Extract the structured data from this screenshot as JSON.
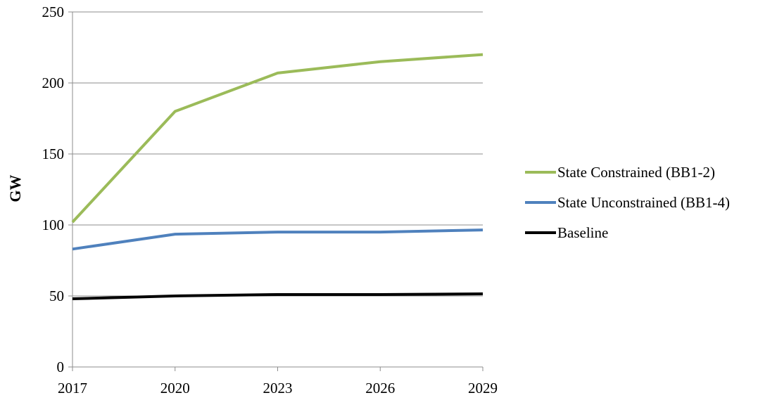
{
  "chart_data": {
    "type": "line",
    "title": "",
    "xlabel": "",
    "ylabel": "GW",
    "x": [
      "2017",
      "2020",
      "2023",
      "2026",
      "2029"
    ],
    "ylim": [
      0,
      250
    ],
    "yticks": [
      0,
      50,
      100,
      150,
      200,
      250
    ],
    "grid": "horizontal",
    "legend_position": "right",
    "series": [
      {
        "name": "State Constrained (BB1-2)",
        "color": "#9BBB59",
        "values": [
          102,
          180,
          207,
          215,
          220
        ]
      },
      {
        "name": "State Unconstrained (BB1-4)",
        "color": "#4F81BD",
        "values": [
          83,
          93.5,
          95,
          95,
          96.5
        ]
      },
      {
        "name": "Baseline",
        "color": "#000000",
        "values": [
          48,
          50,
          51,
          51,
          51.5
        ]
      }
    ]
  }
}
